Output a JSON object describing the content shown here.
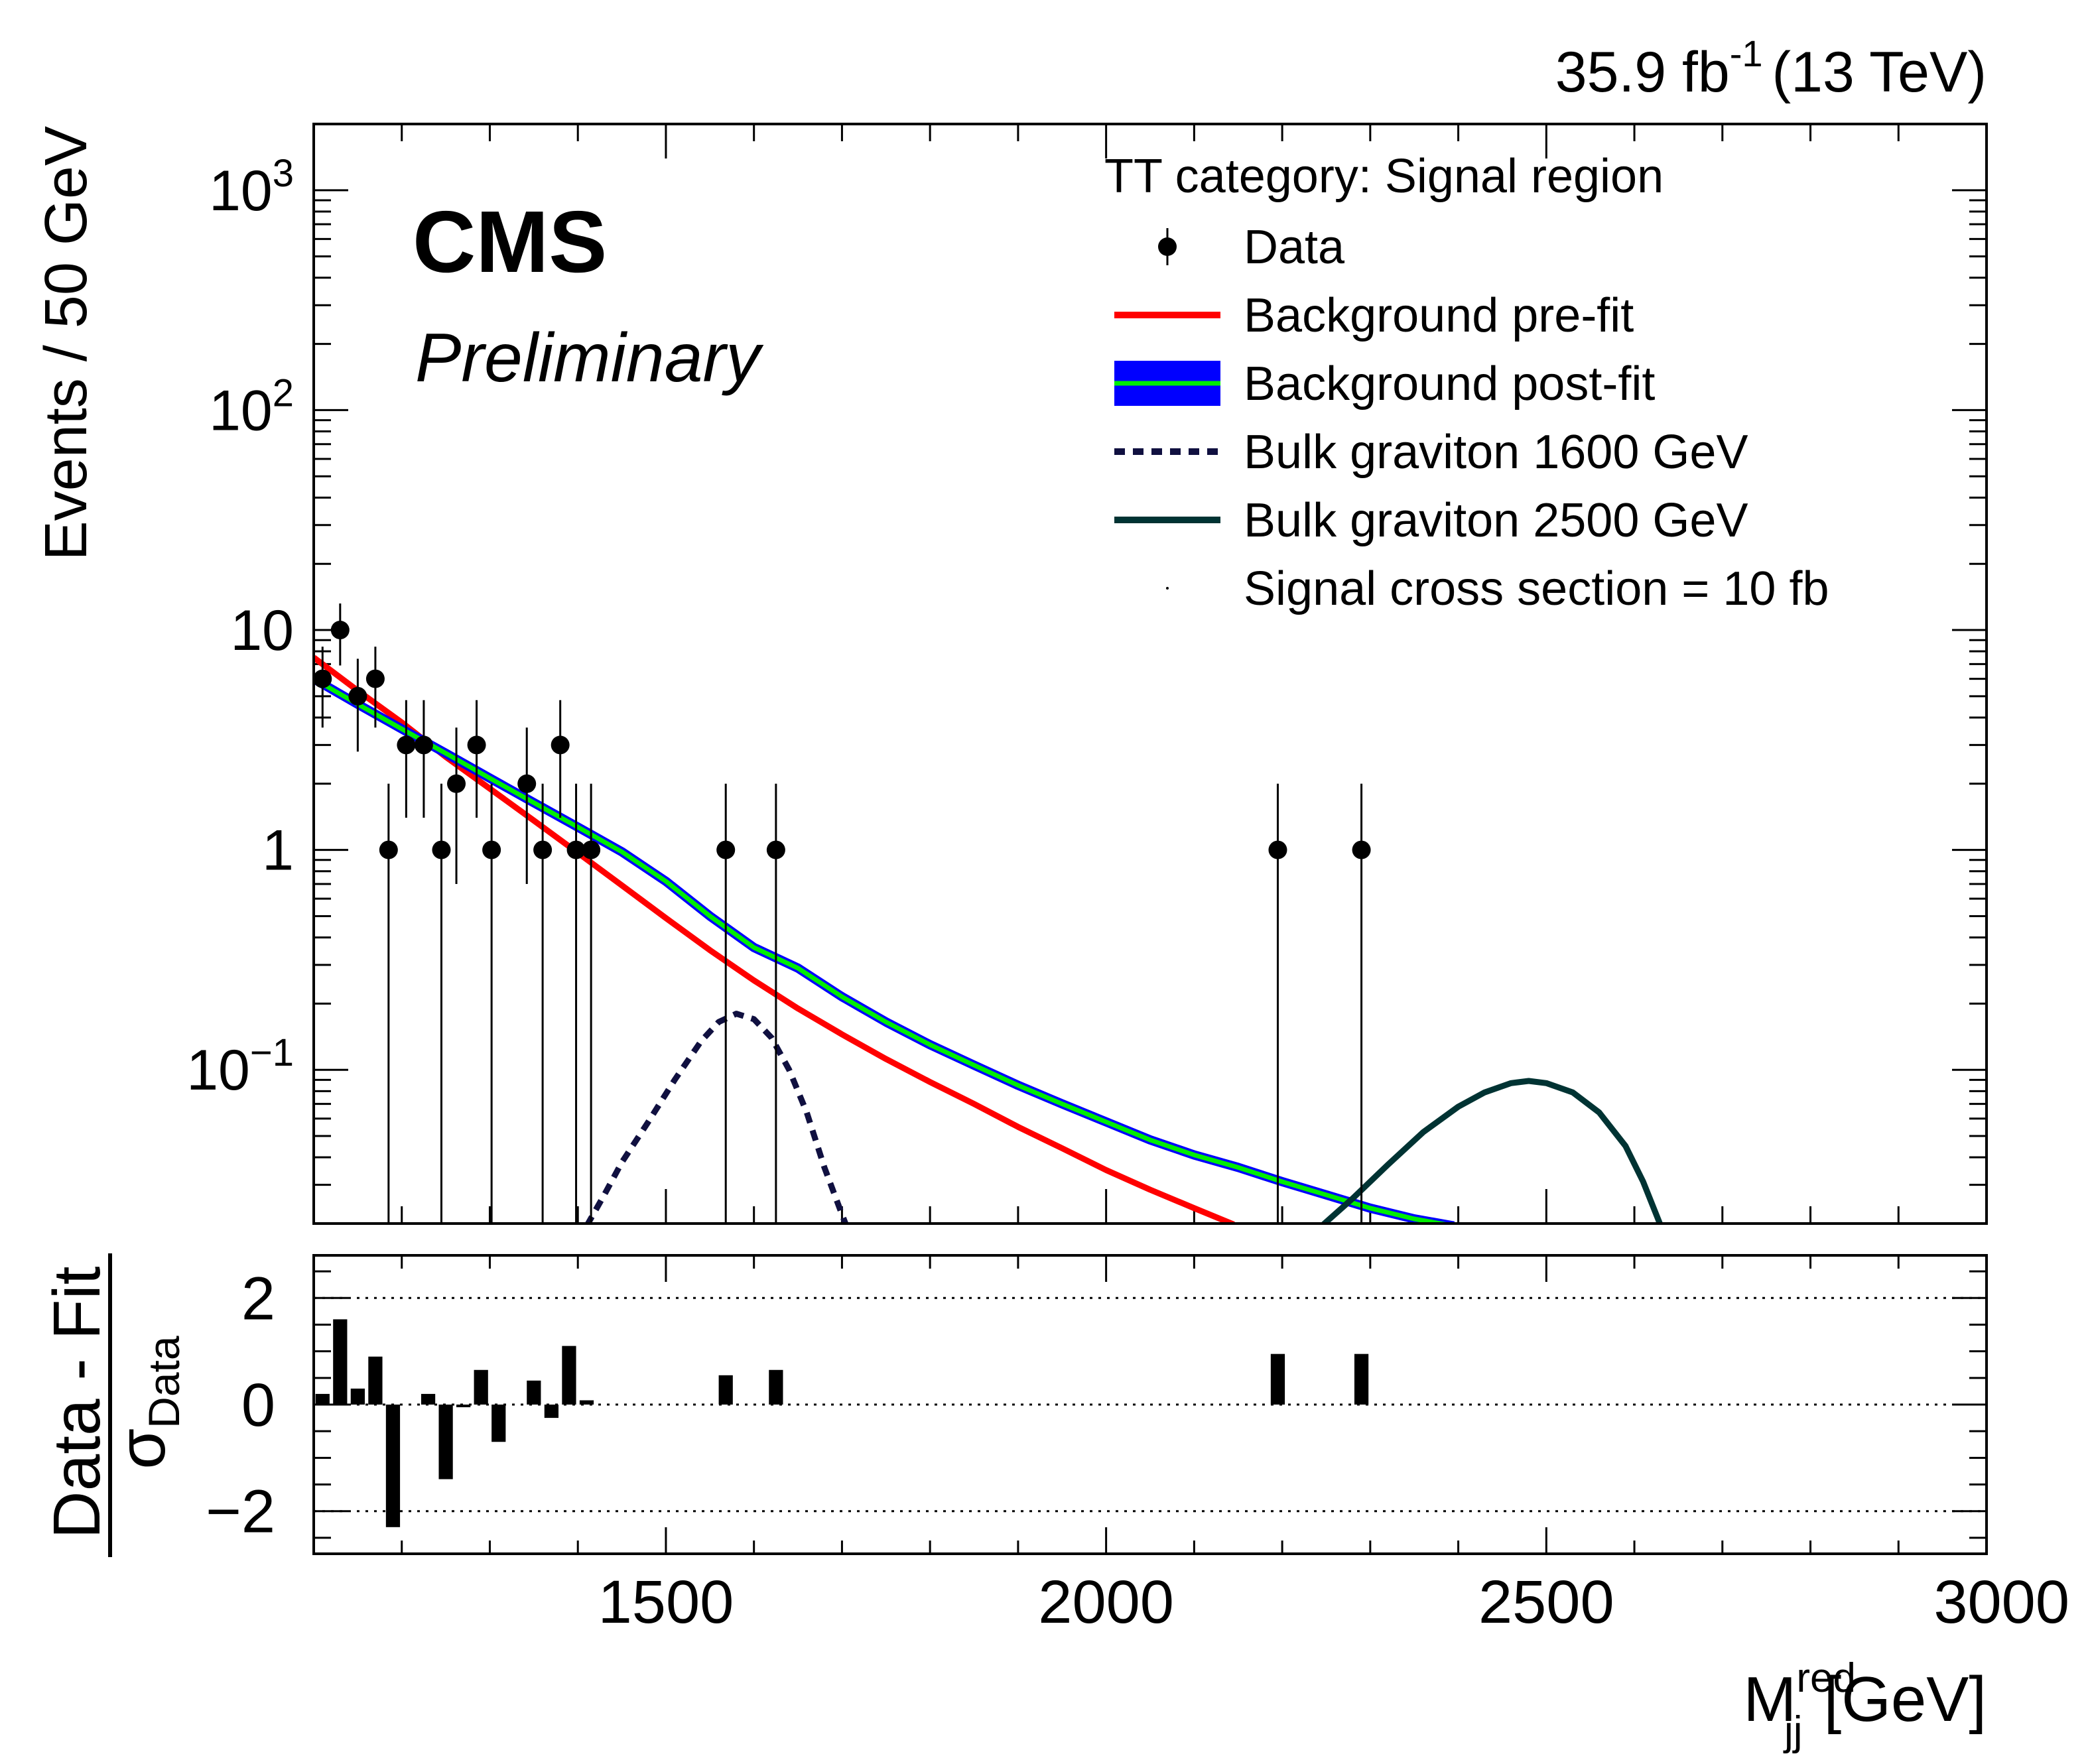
{
  "chart_data": [
    {
      "type": "scatter",
      "panel": "main",
      "lumi_label": "35.9 fb",
      "lumi_exponent": "-1",
      "lumi_energy": "(13 TeV)",
      "experiment_label": "CMS",
      "status_label": "Preliminary",
      "ylabel": "Events / 50 GeV",
      "xlabel": "M",
      "xlabel_sup": "red",
      "xlabel_sub": "jj",
      "xlabel_unit": "[GeV]",
      "yscale": "log",
      "xlim": [
        1100,
        3000
      ],
      "ylim": [
        0.02,
        2000
      ],
      "y_ticks": [
        {
          "value": 1000,
          "base": "10",
          "exp": "3"
        },
        {
          "value": 100,
          "base": "10",
          "exp": "2"
        },
        {
          "value": 10,
          "base": "10",
          "exp": ""
        },
        {
          "value": 1,
          "base": "1",
          "exp": ""
        },
        {
          "value": 0.1,
          "base": "10",
          "exp": "−1"
        }
      ],
      "legend_title": "TT category: Signal region",
      "legend": [
        {
          "label": "Data",
          "style": "marker",
          "color": "#000000"
        },
        {
          "label": "Background pre-fit",
          "style": "line",
          "color": "#ff0000"
        },
        {
          "label": "Background post-fit",
          "style": "band",
          "color": "#0000ff",
          "line_color": "#00ee00"
        },
        {
          "label": "Bulk graviton 1600 GeV",
          "style": "dashed",
          "color": "#101040"
        },
        {
          "label": "Bulk graviton 2500 GeV",
          "style": "line",
          "color": "#003333"
        },
        {
          "label": "Signal cross section = 10 fb",
          "style": "none",
          "color": "#000000"
        }
      ],
      "data_points": [
        {
          "x": 1110,
          "y": 6,
          "lo": 3.6,
          "hi": 8.4
        },
        {
          "x": 1130,
          "y": 10,
          "lo": 6.9,
          "hi": 13.2
        },
        {
          "x": 1150,
          "y": 5,
          "lo": 2.8,
          "hi": 7.4
        },
        {
          "x": 1170,
          "y": 6,
          "lo": 3.6,
          "hi": 8.4
        },
        {
          "x": 1185,
          "y": 1,
          "lo": 0.02,
          "hi": 2.0
        },
        {
          "x": 1205,
          "y": 3,
          "lo": 1.4,
          "hi": 4.8
        },
        {
          "x": 1225,
          "y": 3,
          "lo": 1.4,
          "hi": 4.8
        },
        {
          "x": 1245,
          "y": 1,
          "lo": 0.02,
          "hi": 2.0
        },
        {
          "x": 1262,
          "y": 2,
          "lo": 0.7,
          "hi": 3.6
        },
        {
          "x": 1285,
          "y": 3,
          "lo": 1.4,
          "hi": 4.8
        },
        {
          "x": 1302,
          "y": 1,
          "lo": 0.02,
          "hi": 2.0
        },
        {
          "x": 1342,
          "y": 2,
          "lo": 0.7,
          "hi": 3.6
        },
        {
          "x": 1360,
          "y": 1,
          "lo": 0.02,
          "hi": 2.0
        },
        {
          "x": 1380,
          "y": 3,
          "lo": 1.4,
          "hi": 4.8
        },
        {
          "x": 1398,
          "y": 1,
          "lo": 0.02,
          "hi": 2.0
        },
        {
          "x": 1415,
          "y": 1,
          "lo": 0.02,
          "hi": 2.0
        },
        {
          "x": 1568,
          "y": 1,
          "lo": 0.02,
          "hi": 2.0
        },
        {
          "x": 1625,
          "y": 1,
          "lo": 0.02,
          "hi": 2.0
        },
        {
          "x": 2195,
          "y": 1,
          "lo": 0.02,
          "hi": 2.0
        },
        {
          "x": 2290,
          "y": 1,
          "lo": 0.02,
          "hi": 2.0
        }
      ],
      "curves": [
        {
          "name": "Background pre-fit",
          "color": "#ff0000",
          "points": [
            [
              1100,
              7.5
            ],
            [
              1150,
              5.3
            ],
            [
              1200,
              3.8
            ],
            [
              1250,
              2.65
            ],
            [
              1300,
              1.9
            ],
            [
              1350,
              1.36
            ],
            [
              1400,
              0.97
            ],
            [
              1450,
              0.69
            ],
            [
              1500,
              0.49
            ],
            [
              1550,
              0.35
            ],
            [
              1600,
              0.255
            ],
            [
              1650,
              0.19
            ],
            [
              1700,
              0.145
            ],
            [
              1750,
              0.112
            ],
            [
              1800,
              0.088
            ],
            [
              1850,
              0.07
            ],
            [
              1900,
              0.055
            ],
            [
              1950,
              0.044
            ],
            [
              2000,
              0.035
            ],
            [
              2050,
              0.0285
            ],
            [
              2100,
              0.0235
            ],
            [
              2145,
              0.0198
            ]
          ]
        },
        {
          "name": "Background post-fit",
          "color": "#00ee00",
          "band_color": "#0000ff",
          "points": [
            [
              1100,
              6.0
            ],
            [
              1150,
              4.6
            ],
            [
              1200,
              3.55
            ],
            [
              1250,
              2.75
            ],
            [
              1300,
              2.12
            ],
            [
              1350,
              1.64
            ],
            [
              1400,
              1.27
            ],
            [
              1450,
              0.98
            ],
            [
              1500,
              0.72
            ],
            [
              1550,
              0.5
            ],
            [
              1600,
              0.36
            ],
            [
              1650,
              0.29
            ],
            [
              1700,
              0.215
            ],
            [
              1750,
              0.165
            ],
            [
              1800,
              0.13
            ],
            [
              1850,
              0.105
            ],
            [
              1900,
              0.085
            ],
            [
              1950,
              0.07
            ],
            [
              2000,
              0.058
            ],
            [
              2050,
              0.048
            ],
            [
              2100,
              0.041
            ],
            [
              2150,
              0.036
            ],
            [
              2200,
              0.031
            ],
            [
              2250,
              0.027
            ],
            [
              2300,
              0.0235
            ],
            [
              2350,
              0.021
            ],
            [
              2395,
              0.0195
            ]
          ]
        },
        {
          "name": "Bulk graviton 1600 GeV",
          "color": "#101040",
          "dashed": true,
          "points": [
            [
              1410,
              0.0195
            ],
            [
              1430,
              0.027
            ],
            [
              1450,
              0.038
            ],
            [
              1480,
              0.058
            ],
            [
              1510,
              0.09
            ],
            [
              1540,
              0.135
            ],
            [
              1560,
              0.165
            ],
            [
              1580,
              0.18
            ],
            [
              1600,
              0.17
            ],
            [
              1620,
              0.14
            ],
            [
              1640,
              0.1
            ],
            [
              1660,
              0.064
            ],
            [
              1680,
              0.036
            ],
            [
              1700,
              0.022
            ],
            [
              1705,
              0.0195
            ]
          ]
        },
        {
          "name": "Bulk graviton 2500 GeV",
          "color": "#003333",
          "points": [
            [
              2245,
              0.0195
            ],
            [
              2280,
              0.026
            ],
            [
              2320,
              0.037
            ],
            [
              2360,
              0.052
            ],
            [
              2400,
              0.068
            ],
            [
              2430,
              0.079
            ],
            [
              2460,
              0.087
            ],
            [
              2480,
              0.089
            ],
            [
              2500,
              0.087
            ],
            [
              2530,
              0.079
            ],
            [
              2560,
              0.064
            ],
            [
              2590,
              0.045
            ],
            [
              2610,
              0.031
            ],
            [
              2630,
              0.0195
            ]
          ]
        }
      ]
    },
    {
      "type": "bar",
      "panel": "ratio",
      "ylabel_num": "Data - Fit",
      "ylabel_den": "σ",
      "ylabel_den_sub": "Data",
      "ylim": [
        -2.8,
        2.8
      ],
      "y_ticks": [
        {
          "value": 2,
          "label": "2"
        },
        {
          "value": 0,
          "label": "0"
        },
        {
          "value": -2,
          "label": "−2"
        }
      ],
      "reference_lines": [
        2,
        0,
        -2
      ],
      "x_ticks": [
        {
          "value": 1500,
          "label": "1500"
        },
        {
          "value": 2000,
          "label": "2000"
        },
        {
          "value": 2500,
          "label": "2500"
        },
        {
          "value": 3000,
          "label": "3000"
        }
      ],
      "bin_width": 20,
      "bars": [
        {
          "x": 1110,
          "value": 0.2
        },
        {
          "x": 1130,
          "value": 1.6
        },
        {
          "x": 1150,
          "value": 0.3
        },
        {
          "x": 1170,
          "value": 0.9
        },
        {
          "x": 1190,
          "value": -2.3
        },
        {
          "x": 1230,
          "value": 0.2
        },
        {
          "x": 1250,
          "value": -1.4
        },
        {
          "x": 1270,
          "value": -0.05
        },
        {
          "x": 1290,
          "value": 0.65
        },
        {
          "x": 1310,
          "value": -0.7
        },
        {
          "x": 1350,
          "value": 0.45
        },
        {
          "x": 1370,
          "value": -0.25
        },
        {
          "x": 1390,
          "value": 1.1
        },
        {
          "x": 1410,
          "value": 0.08
        },
        {
          "x": 1568,
          "value": 0.55
        },
        {
          "x": 1625,
          "value": 0.65
        },
        {
          "x": 2195,
          "value": 0.95
        },
        {
          "x": 2290,
          "value": 0.95
        }
      ]
    }
  ]
}
